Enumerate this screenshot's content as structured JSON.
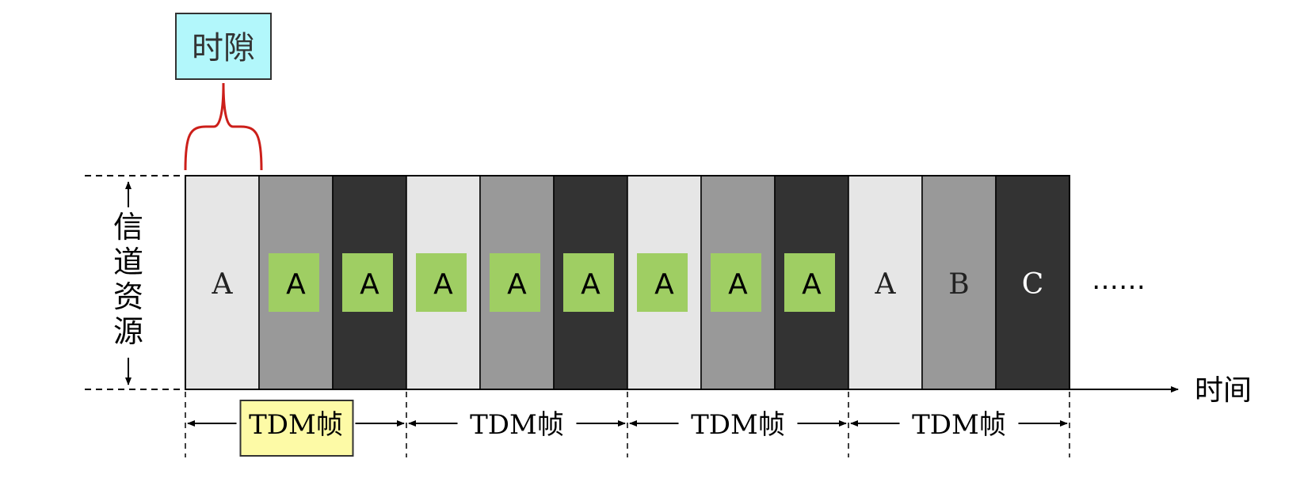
{
  "timeslot_label": "时隙",
  "resource_label": "信道资源",
  "time_label": "时间",
  "ellipsis": "……",
  "colors": {
    "light": "#e6e6e6",
    "mid": "#999999",
    "dark": "#333333",
    "highlight_green": "#9fce63",
    "timeslot_box": "#b2f7fb",
    "frame_box": "#fdfaa6",
    "brace": "#cc1f1a"
  },
  "slots": [
    {
      "label": "A",
      "tone": "light",
      "marked": false
    },
    {
      "label": "A",
      "tone": "mid",
      "marked": true
    },
    {
      "label": "A",
      "tone": "dark",
      "marked": true
    },
    {
      "label": "A",
      "tone": "light",
      "marked": true
    },
    {
      "label": "A",
      "tone": "mid",
      "marked": true
    },
    {
      "label": "A",
      "tone": "dark",
      "marked": true
    },
    {
      "label": "A",
      "tone": "light",
      "marked": true
    },
    {
      "label": "A",
      "tone": "mid",
      "marked": true
    },
    {
      "label": "A",
      "tone": "dark",
      "marked": true
    },
    {
      "label": "A",
      "tone": "light",
      "marked": false
    },
    {
      "label": "B",
      "tone": "mid",
      "marked": false
    },
    {
      "label": "C",
      "tone": "dark",
      "marked": false
    }
  ],
  "frames": [
    {
      "label": "TDM帧",
      "highlighted": true
    },
    {
      "label": "TDM帧",
      "highlighted": false
    },
    {
      "label": "TDM帧",
      "highlighted": false
    },
    {
      "label": "TDM帧",
      "highlighted": false
    }
  ]
}
